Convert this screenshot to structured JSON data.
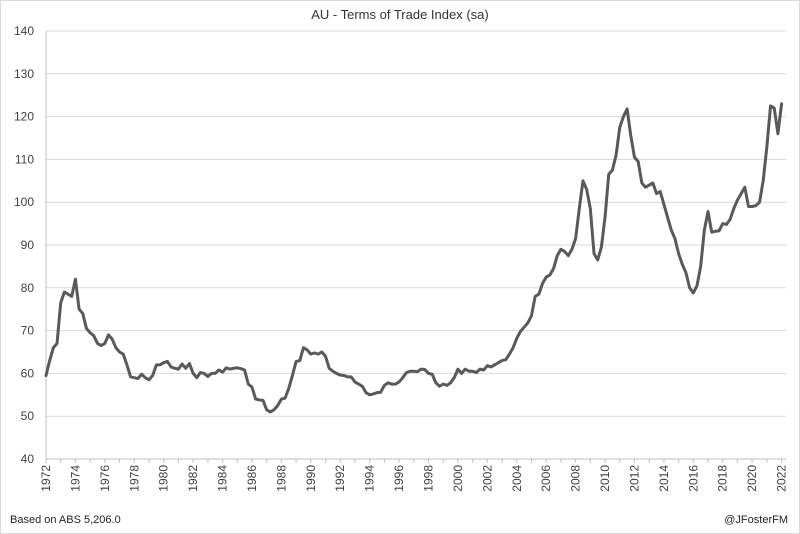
{
  "title": "AU - Terms of Trade Index (sa)",
  "footer": {
    "source": "Based on ABS 5,206.0",
    "handle": "@JFosterFM"
  },
  "colors": {
    "line": "#595959",
    "grid": "#d9d9d9",
    "axis": "#bfbfbf",
    "text": "#404040"
  },
  "chart_data": {
    "type": "line",
    "title": "AU - Terms of Trade Index (sa)",
    "xlabel": "",
    "ylabel": "",
    "ylim": [
      40,
      140
    ],
    "xlim": [
      1972,
      2022.3
    ],
    "yticks": [
      40,
      50,
      60,
      70,
      80,
      90,
      100,
      110,
      120,
      130,
      140
    ],
    "xticks": [
      "1972",
      "1974",
      "1976",
      "1978",
      "1980",
      "1982",
      "1984",
      "1986",
      "1988",
      "1990",
      "1992",
      "1994",
      "1996",
      "1998",
      "2000",
      "2002",
      "2004",
      "2006",
      "2008",
      "2010",
      "2012",
      "2014",
      "2016",
      "2018",
      "2020",
      "2022"
    ],
    "grid": true,
    "legend": "none",
    "series": [
      {
        "x": [
          1972.0,
          1972.25,
          1972.5,
          1972.75,
          1973.0,
          1973.25,
          1973.5,
          1973.75,
          1974.0,
          1974.25,
          1974.5,
          1974.75,
          1975.0,
          1975.25,
          1975.5,
          1975.75,
          1976.0,
          1976.25,
          1976.5,
          1976.75,
          1977.0,
          1977.25,
          1977.5,
          1977.75,
          1978.0,
          1978.25,
          1978.5,
          1978.75,
          1979.0,
          1979.25,
          1979.5,
          1979.75,
          1980.0,
          1980.25,
          1980.5,
          1980.75,
          1981.0,
          1981.25,
          1981.5,
          1981.75,
          1982.0,
          1982.25,
          1982.5,
          1982.75,
          1983.0,
          1983.25,
          1983.5,
          1983.75,
          1984.0,
          1984.25,
          1984.5,
          1984.75,
          1985.0,
          1985.25,
          1985.5,
          1985.75,
          1986.0,
          1986.25,
          1986.5,
          1986.75,
          1987.0,
          1987.25,
          1987.5,
          1987.75,
          1988.0,
          1988.25,
          1988.5,
          1988.75,
          1989.0,
          1989.25,
          1989.5,
          1989.75,
          1990.0,
          1990.25,
          1990.5,
          1990.75,
          1991.0,
          1991.25,
          1991.5,
          1991.75,
          1992.0,
          1992.25,
          1992.5,
          1992.75,
          1993.0,
          1993.25,
          1993.5,
          1993.75,
          1994.0,
          1994.25,
          1994.5,
          1994.75,
          1995.0,
          1995.25,
          1995.5,
          1995.75,
          1996.0,
          1996.25,
          1996.5,
          1996.75,
          1997.0,
          1997.25,
          1997.5,
          1997.75,
          1998.0,
          1998.25,
          1998.5,
          1998.75,
          1999.0,
          1999.25,
          1999.5,
          1999.75,
          2000.0,
          2000.25,
          2000.5,
          2000.75,
          2001.0,
          2001.25,
          2001.5,
          2001.75,
          2002.0,
          2002.25,
          2002.5,
          2002.75,
          2003.0,
          2003.25,
          2003.5,
          2003.75,
          2004.0,
          2004.25,
          2004.5,
          2004.75,
          2005.0,
          2005.25,
          2005.5,
          2005.75,
          2006.0,
          2006.25,
          2006.5,
          2006.75,
          2007.0,
          2007.25,
          2007.5,
          2007.75,
          2008.0,
          2008.25,
          2008.5,
          2008.75,
          2009.0,
          2009.25,
          2009.5,
          2009.75,
          2010.0,
          2010.25,
          2010.5,
          2010.75,
          2011.0,
          2011.25,
          2011.5,
          2011.75,
          2012.0,
          2012.25,
          2012.5,
          2012.75,
          2013.0,
          2013.25,
          2013.5,
          2013.75,
          2014.0,
          2014.25,
          2014.5,
          2014.75,
          2015.0,
          2015.25,
          2015.5,
          2015.75,
          2016.0,
          2016.25,
          2016.5,
          2016.75,
          2017.0,
          2017.25,
          2017.5,
          2017.75,
          2018.0,
          2018.25,
          2018.5,
          2018.75,
          2019.0,
          2019.25,
          2019.5,
          2019.75,
          2020.0,
          2020.25,
          2020.5,
          2020.75,
          2021.0,
          2021.25,
          2021.5,
          2021.75,
          2022.0
        ],
        "values": [
          59.5,
          63,
          66,
          67,
          76.5,
          79,
          78.5,
          78,
          82,
          75,
          74,
          70.5,
          69.5,
          68.8,
          67,
          66.5,
          67,
          69,
          68,
          66,
          65,
          64.5,
          62,
          59.2,
          59,
          58.8,
          59.8,
          59,
          58.5,
          59.5,
          62,
          62,
          62.5,
          62.8,
          61.5,
          61.2,
          61,
          62.2,
          61.2,
          62.3,
          60,
          59,
          60.2,
          60,
          59.3,
          60,
          60,
          60.8,
          60.3,
          61.3,
          61,
          61.2,
          61.3,
          61.1,
          60.8,
          57.5,
          56.8,
          54,
          53.8,
          53.7,
          51.5,
          51,
          51.5,
          52.5,
          54,
          54.2,
          56.5,
          59.5,
          62.8,
          63,
          66,
          65.5,
          64.5,
          64.8,
          64.5,
          65,
          64,
          61.2,
          60.5,
          60,
          59.6,
          59.5,
          59.2,
          59.2,
          58,
          57.5,
          57,
          55.5,
          55,
          55.2,
          55.5,
          55.6,
          57.2,
          57.8,
          57.5,
          57.5,
          58,
          59,
          60.2,
          60.5,
          60.5,
          60.4,
          61,
          60.9,
          60,
          59.8,
          57.8,
          57,
          57.5,
          57.2,
          57.8,
          59,
          61,
          60,
          61,
          60.5,
          60.5,
          60.2,
          61,
          60.8,
          61.8,
          61.5,
          62,
          62.5,
          63,
          63.2,
          64.5,
          66,
          68.2,
          69.8,
          70.8,
          71.8,
          73.5,
          78,
          78.5,
          81,
          82.5,
          83,
          84.5,
          87.5,
          89,
          88.5,
          87.5,
          89,
          91.5,
          98.5,
          105,
          103,
          98.5,
          88,
          86.5,
          89.5,
          96.5,
          106.5,
          107.5,
          111,
          117.5,
          120,
          121.8,
          115.5,
          110.5,
          109.5,
          104.5,
          103.5,
          104,
          104.5,
          102,
          102.5,
          99.5,
          96.5,
          93.5,
          91.5,
          88,
          85.5,
          83.5,
          80,
          78.8,
          80.5,
          85,
          93.5,
          97.8,
          93,
          93.2,
          93.3,
          95,
          94.8,
          96,
          98.5,
          100.5,
          102,
          103.5,
          99,
          99,
          99.2,
          100,
          105,
          113,
          122.5,
          122,
          116,
          123
        ]
      }
    ]
  }
}
